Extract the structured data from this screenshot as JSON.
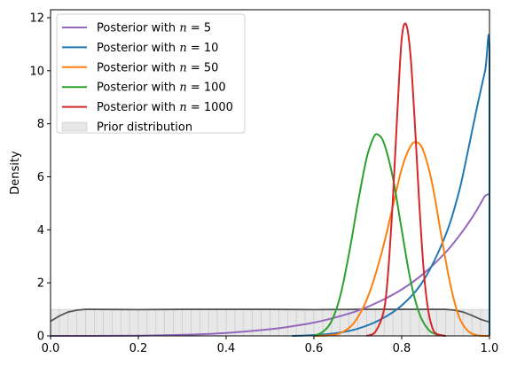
{
  "chart_data": {
    "type": "line",
    "title": "",
    "xlabel": "",
    "ylabel": "Density",
    "xlim": [
      0.0,
      1.0
    ],
    "ylim": [
      0,
      12.3
    ],
    "xticks": [
      0.0,
      0.2,
      0.4,
      0.6,
      0.8,
      1.0
    ],
    "xtick_labels": [
      "0.0",
      "0.2",
      "0.4",
      "0.6",
      "0.8",
      "1.0"
    ],
    "yticks": [
      0,
      2,
      4,
      6,
      8,
      10,
      12
    ],
    "ytick_labels": [
      "0",
      "2",
      "4",
      "6",
      "8",
      "10",
      "12"
    ],
    "grid": false,
    "legend_position": "top-left",
    "prior": {
      "name": "Prior distribution",
      "color": "#e8e8e8",
      "edge_color": "#c8c8c8",
      "curve_color": "#555555",
      "bins": 50,
      "value": 1.0,
      "kde_x": [
        0.0,
        0.02,
        0.04,
        0.06,
        0.08,
        0.1,
        0.2,
        0.3,
        0.4,
        0.5,
        0.6,
        0.7,
        0.8,
        0.9,
        0.92,
        0.94,
        0.96,
        0.98,
        1.0
      ],
      "kde_y": [
        0.55,
        0.75,
        0.9,
        0.97,
        1.0,
        1.0,
        0.99,
        1.0,
        1.0,
        1.0,
        0.99,
        1.0,
        1.0,
        1.0,
        0.97,
        0.9,
        0.77,
        0.62,
        0.52
      ]
    },
    "series": [
      {
        "name": "Posterior with n = 5",
        "label_prefix": "Posterior with ",
        "label_var": "n",
        "label_suffix": " = 5",
        "color": "#9467bd",
        "x": [
          0.0,
          0.1,
          0.2,
          0.3,
          0.4,
          0.5,
          0.55,
          0.6,
          0.65,
          0.7,
          0.75,
          0.8,
          0.85,
          0.9,
          0.93,
          0.96,
          0.98,
          0.99,
          1.0
        ],
        "y": [
          0.0,
          0.0,
          0.01,
          0.04,
          0.11,
          0.25,
          0.36,
          0.5,
          0.7,
          0.95,
          1.3,
          1.75,
          2.35,
          3.15,
          3.75,
          4.45,
          5.0,
          5.28,
          5.35
        ]
      },
      {
        "name": "Posterior with n = 10",
        "label_prefix": "Posterior with ",
        "label_var": "n",
        "label_suffix": " = 10",
        "color": "#1f77b4",
        "x": [
          0.55,
          0.6,
          0.65,
          0.7,
          0.75,
          0.8,
          0.85,
          0.9,
          0.93,
          0.95,
          0.97,
          0.99,
          1.0,
          1.0
        ],
        "y": [
          0.0,
          0.03,
          0.1,
          0.27,
          0.6,
          1.15,
          2.1,
          3.8,
          5.4,
          6.9,
          8.5,
          10.0,
          10.7,
          0.0
        ]
      },
      {
        "name": "Posterior with n = 50",
        "label_prefix": "Posterior with ",
        "label_var": "n",
        "label_suffix": " = 50",
        "color": "#ff7f0e",
        "x": [
          0.6,
          0.65,
          0.68,
          0.7,
          0.72,
          0.74,
          0.76,
          0.78,
          0.8,
          0.82,
          0.835,
          0.85,
          0.87,
          0.89,
          0.91,
          0.93,
          0.95,
          0.97,
          0.99,
          1.0
        ],
        "y": [
          0.0,
          0.05,
          0.3,
          0.7,
          1.35,
          2.3,
          3.5,
          4.9,
          6.3,
          7.15,
          7.3,
          6.95,
          5.7,
          3.8,
          2.0,
          0.75,
          0.2,
          0.03,
          0.0,
          0.0
        ]
      },
      {
        "name": "Posterior with n = 100",
        "label_prefix": "Posterior with ",
        "label_var": "n",
        "label_suffix": " = 100",
        "color": "#2ca02c",
        "x": [
          0.6,
          0.62,
          0.64,
          0.66,
          0.68,
          0.7,
          0.72,
          0.735,
          0.745,
          0.76,
          0.78,
          0.8,
          0.82,
          0.84,
          0.86,
          0.88,
          0.9
        ],
        "y": [
          0.0,
          0.15,
          0.55,
          1.5,
          3.1,
          5.0,
          6.7,
          7.45,
          7.6,
          7.25,
          5.95,
          4.0,
          2.1,
          0.85,
          0.25,
          0.05,
          0.0
        ]
      },
      {
        "name": "Posterior with n = 1000",
        "label_prefix": "Posterior with ",
        "label_var": "n",
        "label_suffix": " = 1000",
        "color": "#d62728",
        "x": [
          0.72,
          0.74,
          0.76,
          0.77,
          0.78,
          0.79,
          0.8,
          0.81,
          0.82,
          0.83,
          0.84,
          0.85,
          0.86,
          0.87,
          0.88,
          0.9
        ],
        "y": [
          0.0,
          0.15,
          1.0,
          2.6,
          5.2,
          8.4,
          11.2,
          11.75,
          10.6,
          8.0,
          5.0,
          2.5,
          1.0,
          0.3,
          0.07,
          0.0
        ]
      }
    ]
  }
}
